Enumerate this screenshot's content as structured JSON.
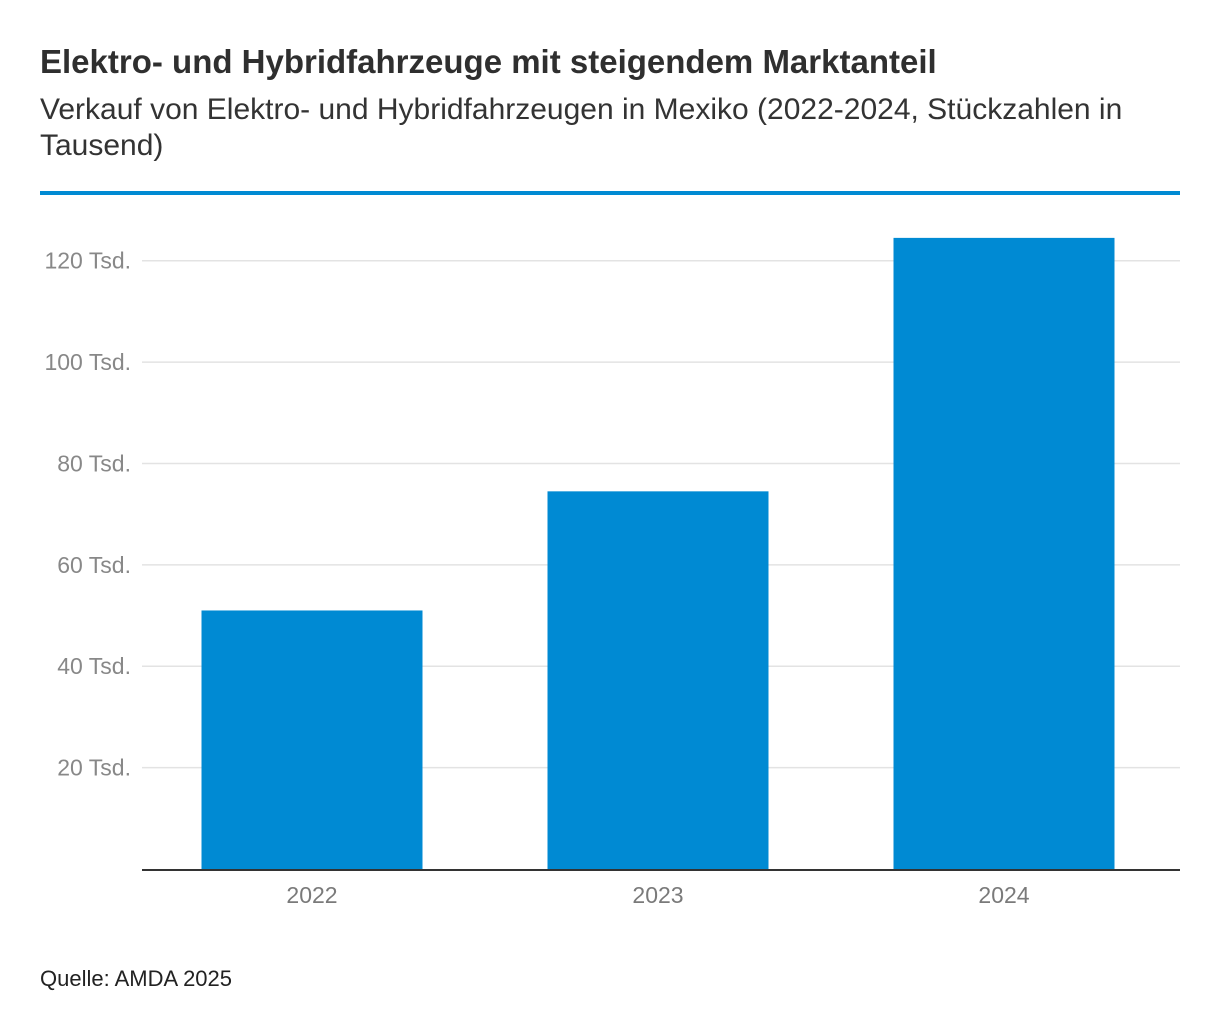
{
  "header": {
    "title": "Elektro- und Hybridfahrzeuge mit steigendem Marktanteil",
    "subtitle": "Verkauf von Elektro- und Hybridfahrzeugen in Mexiko (2022-2024, Stückzahlen in Tausend)"
  },
  "footer": {
    "source": "Quelle: AMDA 2025"
  },
  "chart_data": {
    "type": "bar",
    "categories": [
      "2022",
      "2023",
      "2024"
    ],
    "values": [
      51,
      74.5,
      124.5
    ],
    "ylim": [
      0,
      130
    ],
    "yticks": [
      20,
      40,
      60,
      80,
      100,
      120
    ],
    "ytick_labels": [
      "20 Tsd.",
      "40 Tsd.",
      "60 Tsd.",
      "80 Tsd.",
      "100 Tsd.",
      "120 Tsd."
    ],
    "grid": true,
    "legend": "none",
    "bar_color": "#008ad3",
    "grid_color": "#e3e3e3",
    "axis_color": "#333333",
    "tick_label_color": "#888888"
  }
}
